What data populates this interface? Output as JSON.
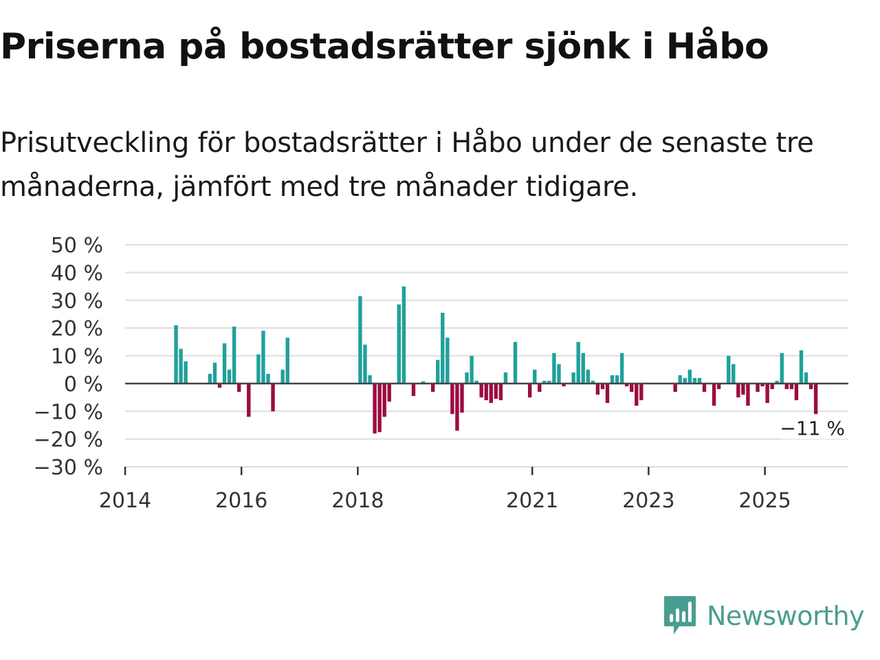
{
  "header": {
    "title": "Priserna på bostadsrätter sjönk i Håbo",
    "subtitle": "Prisutveckling för bostadsrätter i Håbo under de senaste tre månaderna, jämfört med tre månader tidigare."
  },
  "brand": {
    "name": "Newsworthy",
    "color": "#4a9d91",
    "icon": "newsworthy-logo-icon"
  },
  "colors": {
    "positive": "#1fa19a",
    "negative": "#9c0c41",
    "grid": "#dddddd",
    "zero": "#444444"
  },
  "chart_data": {
    "type": "bar",
    "title": "Priserna på bostadsrätter sjönk i Håbo",
    "xlabel": "",
    "ylabel": "",
    "ylim": [
      -30,
      50
    ],
    "y_ticks": [
      50,
      40,
      30,
      20,
      10,
      0,
      -10,
      -20,
      -30
    ],
    "y_tick_labels": [
      "50 %",
      "40 %",
      "30 %",
      "20 %",
      "10 %",
      "0 %",
      "−10 %",
      "−20 %",
      "−30 %"
    ],
    "x_ticks": [
      {
        "label": "2014",
        "month": 0
      },
      {
        "label": "2016",
        "month": 24
      },
      {
        "label": "2018",
        "month": 48
      },
      {
        "label": "2021",
        "month": 84
      },
      {
        "label": "2023",
        "month": 108
      },
      {
        "label": "2025",
        "month": 132
      }
    ],
    "x_range_months": [
      0,
      150
    ],
    "series": [
      {
        "name": "Prisutveckling",
        "points": [
          {
            "m": 10,
            "v": 21
          },
          {
            "m": 11,
            "v": 12.5
          },
          {
            "m": 12,
            "v": 8
          },
          {
            "m": 17,
            "v": 3.5
          },
          {
            "m": 18,
            "v": 7.5
          },
          {
            "m": 19,
            "v": -1.5
          },
          {
            "m": 20,
            "v": 14.5
          },
          {
            "m": 21,
            "v": 5
          },
          {
            "m": 22,
            "v": 20.5
          },
          {
            "m": 23,
            "v": -3
          },
          {
            "m": 25,
            "v": -12
          },
          {
            "m": 27,
            "v": 10.5
          },
          {
            "m": 28,
            "v": 19
          },
          {
            "m": 29,
            "v": 3.5
          },
          {
            "m": 30,
            "v": -10
          },
          {
            "m": 32,
            "v": 5
          },
          {
            "m": 33,
            "v": 16.5
          },
          {
            "m": 48,
            "v": 31.5
          },
          {
            "m": 49,
            "v": 14
          },
          {
            "m": 50,
            "v": 3
          },
          {
            "m": 51,
            "v": -18
          },
          {
            "m": 52,
            "v": -17.5
          },
          {
            "m": 53,
            "v": -12
          },
          {
            "m": 54,
            "v": -6.5
          },
          {
            "m": 56,
            "v": 28.5
          },
          {
            "m": 57,
            "v": 35
          },
          {
            "m": 59,
            "v": -4.5
          },
          {
            "m": 61,
            "v": 0.8
          },
          {
            "m": 63,
            "v": -3
          },
          {
            "m": 64,
            "v": 8.5
          },
          {
            "m": 65,
            "v": 25.5
          },
          {
            "m": 66,
            "v": 16.5
          },
          {
            "m": 67,
            "v": -11
          },
          {
            "m": 68,
            "v": -17
          },
          {
            "m": 69,
            "v": -10.5
          },
          {
            "m": 70,
            "v": 4
          },
          {
            "m": 71,
            "v": 10
          },
          {
            "m": 72,
            "v": 1
          },
          {
            "m": 73,
            "v": -5
          },
          {
            "m": 74,
            "v": -6
          },
          {
            "m": 75,
            "v": -7
          },
          {
            "m": 76,
            "v": -5.5
          },
          {
            "m": 77,
            "v": -6
          },
          {
            "m": 78,
            "v": 4
          },
          {
            "m": 80,
            "v": 15
          },
          {
            "m": 83,
            "v": -5
          },
          {
            "m": 84,
            "v": 5
          },
          {
            "m": 85,
            "v": -3
          },
          {
            "m": 86,
            "v": 1
          },
          {
            "m": 87,
            "v": 1
          },
          {
            "m": 88,
            "v": 11
          },
          {
            "m": 89,
            "v": 7
          },
          {
            "m": 90,
            "v": -1
          },
          {
            "m": 92,
            "v": 4
          },
          {
            "m": 93,
            "v": 15
          },
          {
            "m": 94,
            "v": 11
          },
          {
            "m": 95,
            "v": 5
          },
          {
            "m": 96,
            "v": 1
          },
          {
            "m": 97,
            "v": -4
          },
          {
            "m": 98,
            "v": -2
          },
          {
            "m": 99,
            "v": -7
          },
          {
            "m": 100,
            "v": 3
          },
          {
            "m": 101,
            "v": 3
          },
          {
            "m": 102,
            "v": 11
          },
          {
            "m": 103,
            "v": -1
          },
          {
            "m": 104,
            "v": -3
          },
          {
            "m": 105,
            "v": -8
          },
          {
            "m": 106,
            "v": -6
          },
          {
            "m": 113,
            "v": -3
          },
          {
            "m": 114,
            "v": 3
          },
          {
            "m": 115,
            "v": 2
          },
          {
            "m": 116,
            "v": 5
          },
          {
            "m": 117,
            "v": 2
          },
          {
            "m": 118,
            "v": 2
          },
          {
            "m": 119,
            "v": -3
          },
          {
            "m": 121,
            "v": -8
          },
          {
            "m": 122,
            "v": -2
          },
          {
            "m": 124,
            "v": 10
          },
          {
            "m": 125,
            "v": 7
          },
          {
            "m": 126,
            "v": -5
          },
          {
            "m": 127,
            "v": -4
          },
          {
            "m": 128,
            "v": -8
          },
          {
            "m": 130,
            "v": -3
          },
          {
            "m": 131,
            "v": -1
          },
          {
            "m": 132,
            "v": -7
          },
          {
            "m": 133,
            "v": -2
          },
          {
            "m": 134,
            "v": 1
          },
          {
            "m": 135,
            "v": 11
          },
          {
            "m": 136,
            "v": -2
          },
          {
            "m": 137,
            "v": -2
          },
          {
            "m": 138,
            "v": -6
          },
          {
            "m": 139,
            "v": 12
          },
          {
            "m": 140,
            "v": 4
          },
          {
            "m": 141,
            "v": -2
          },
          {
            "m": 142,
            "v": -11
          }
        ]
      }
    ],
    "annotations": [
      {
        "text": "−11 %",
        "m": 142,
        "v": -11
      }
    ],
    "grid": true,
    "legend": "none"
  }
}
